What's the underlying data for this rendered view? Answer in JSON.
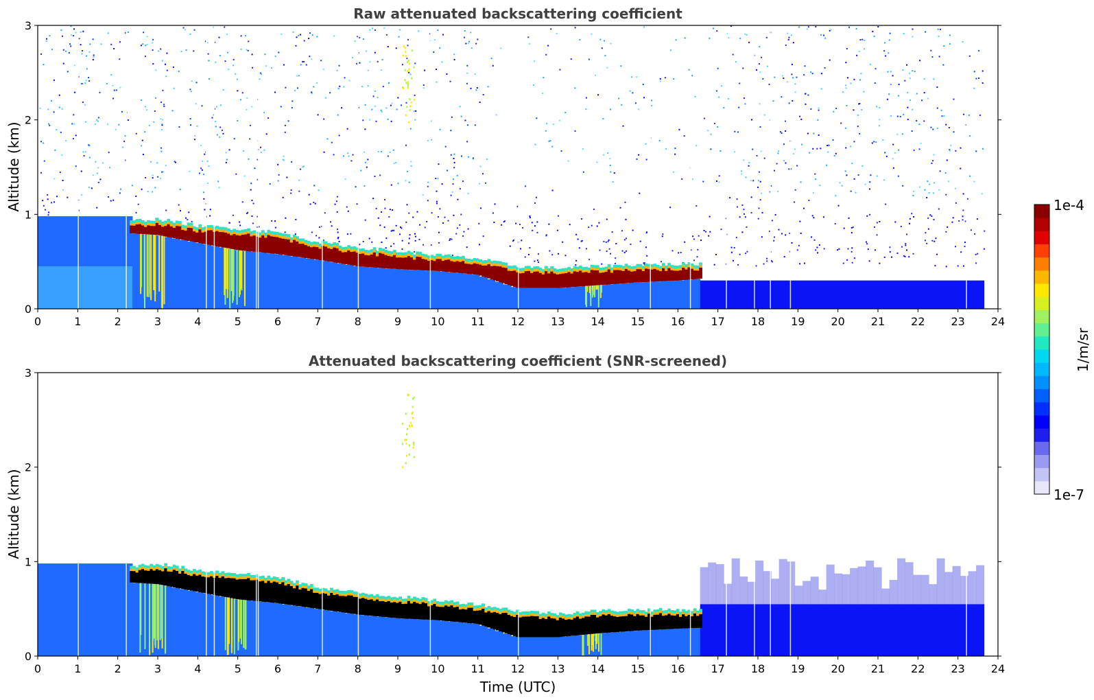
{
  "chart_data": [
    {
      "type": "heatmap",
      "title": "Raw attenuated backscattering coefficient",
      "xlabel": "",
      "ylabel": "Altitude (km)",
      "xlim": [
        0,
        24
      ],
      "ylim": [
        0,
        3
      ],
      "xticks": [
        "0",
        "1",
        "2",
        "3",
        "4",
        "5",
        "6",
        "7",
        "8",
        "9",
        "10",
        "11",
        "12",
        "13",
        "14",
        "15",
        "16",
        "17",
        "18",
        "19",
        "20",
        "21",
        "22",
        "23",
        "24"
      ],
      "yticks": [
        "0",
        "1",
        "2",
        "3"
      ],
      "layer_top_km": [
        [
          2.3,
          0.9
        ],
        [
          3,
          0.92
        ],
        [
          4,
          0.85
        ],
        [
          5,
          0.82
        ],
        [
          6,
          0.78
        ],
        [
          7,
          0.68
        ],
        [
          8,
          0.62
        ],
        [
          9,
          0.58
        ],
        [
          10,
          0.54
        ],
        [
          11,
          0.5
        ],
        [
          12,
          0.42
        ],
        [
          13,
          0.4
        ],
        [
          14,
          0.42
        ],
        [
          15,
          0.44
        ],
        [
          16,
          0.44
        ],
        [
          16.6,
          0.45
        ]
      ],
      "layer_bottom_km": [
        [
          2.3,
          0.8
        ],
        [
          3,
          0.78
        ],
        [
          4,
          0.7
        ],
        [
          5,
          0.62
        ],
        [
          6,
          0.58
        ],
        [
          7,
          0.52
        ],
        [
          8,
          0.45
        ],
        [
          9,
          0.42
        ],
        [
          10,
          0.4
        ],
        [
          11,
          0.36
        ],
        [
          12,
          0.22
        ],
        [
          13,
          0.22
        ],
        [
          14,
          0.25
        ],
        [
          15,
          0.28
        ],
        [
          16,
          0.3
        ],
        [
          16.6,
          0.32
        ]
      ]
    },
    {
      "type": "heatmap",
      "title": "Attenuated backscattering coefficient (SNR-screened)",
      "xlabel": "Time (UTC)",
      "ylabel": "Altitude (km)",
      "xlim": [
        0,
        24
      ],
      "ylim": [
        0,
        3
      ],
      "xticks": [
        "0",
        "1",
        "2",
        "3",
        "4",
        "5",
        "6",
        "7",
        "8",
        "9",
        "10",
        "11",
        "12",
        "13",
        "14",
        "15",
        "16",
        "17",
        "18",
        "19",
        "20",
        "21",
        "22",
        "23",
        "24"
      ],
      "yticks": [
        "0",
        "1",
        "2",
        "3"
      ],
      "layer_top_km": [
        [
          2.3,
          0.92
        ],
        [
          3,
          0.95
        ],
        [
          4,
          0.88
        ],
        [
          5,
          0.85
        ],
        [
          6,
          0.8
        ],
        [
          7,
          0.7
        ],
        [
          8,
          0.64
        ],
        [
          9,
          0.6
        ],
        [
          10,
          0.56
        ],
        [
          11,
          0.52
        ],
        [
          12,
          0.45
        ],
        [
          13,
          0.42
        ],
        [
          14,
          0.45
        ],
        [
          15,
          0.46
        ],
        [
          16,
          0.46
        ],
        [
          16.6,
          0.46
        ]
      ],
      "layer_bottom_km": [
        [
          2.3,
          0.78
        ],
        [
          3,
          0.76
        ],
        [
          4,
          0.68
        ],
        [
          5,
          0.6
        ],
        [
          6,
          0.56
        ],
        [
          7,
          0.5
        ],
        [
          8,
          0.44
        ],
        [
          9,
          0.4
        ],
        [
          10,
          0.38
        ],
        [
          11,
          0.34
        ],
        [
          12,
          0.2
        ],
        [
          13,
          0.2
        ],
        [
          14,
          0.24
        ],
        [
          15,
          0.27
        ],
        [
          16,
          0.29
        ],
        [
          16.6,
          0.3
        ]
      ],
      "cloud_km": {
        "time_start": 9.1,
        "time_end": 9.4,
        "alt_start": 1.95,
        "alt_end": 2.8
      }
    }
  ],
  "colorbar": {
    "label": "1/m/sr",
    "max_label": "1e-4",
    "min_label": "1e-7",
    "colors": [
      "#e6e6f8",
      "#c4c4f4",
      "#9a9af0",
      "#6a6aee",
      "#1e1ef0",
      "#0000ff",
      "#0030ff",
      "#0060ff",
      "#0090ff",
      "#00b8ff",
      "#00d8f0",
      "#20e8c0",
      "#60f090",
      "#a0f060",
      "#d8f020",
      "#ffe800",
      "#ffb800",
      "#ff8000",
      "#ff4000",
      "#e00000",
      "#b00000",
      "#8a0000"
    ]
  }
}
